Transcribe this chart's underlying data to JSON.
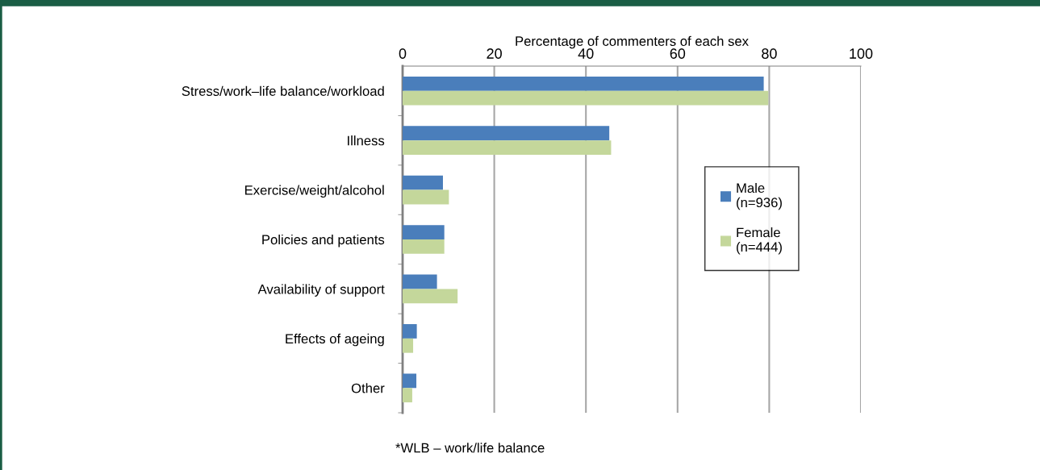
{
  "chart_data": {
    "type": "bar",
    "orientation": "horizontal",
    "xlabel": "Percentage of commenters of each sex",
    "categories": [
      "Stress/work–life balance/workload",
      "Illness",
      "Exercise/weight/alcohol",
      "Policies and patients",
      "Availability of support",
      "Effects of ageing",
      "Other"
    ],
    "series": [
      {
        "name": "Male\n(n=936)",
        "color": "#4a7ebb",
        "values": [
          78.8,
          45.1,
          8.8,
          9.1,
          7.5,
          3.1,
          3.0
        ]
      },
      {
        "name": "Female\n(n=444)",
        "color": "#c4d79b",
        "values": [
          79.8,
          45.5,
          10.1,
          9.1,
          12.0,
          2.3,
          2.1
        ]
      }
    ],
    "xlim": [
      0,
      100
    ],
    "xticks": [
      0,
      20,
      40,
      60,
      80,
      100
    ],
    "grid": "x",
    "legend": "right",
    "annotations": [
      "*WLB – work/life balance"
    ]
  }
}
